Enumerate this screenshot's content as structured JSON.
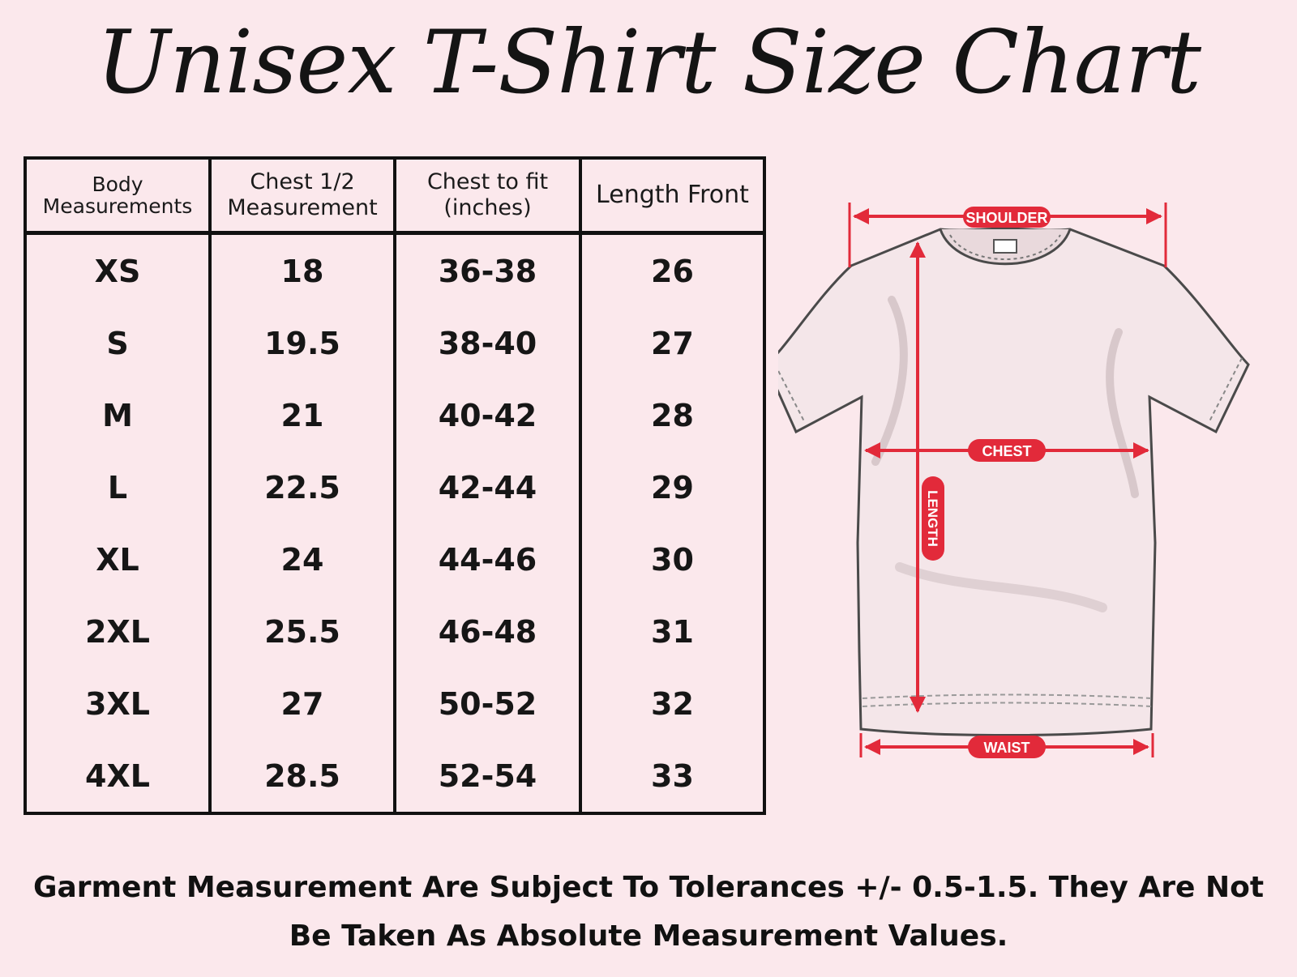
{
  "title": "Unisex T-Shirt Size Chart",
  "table": {
    "headers": [
      [
        "Body",
        "Measurements"
      ],
      [
        "Chest 1/2",
        "Measurement"
      ],
      [
        "Chest to fit",
        "(inches)"
      ],
      [
        "Length Front"
      ]
    ],
    "rows": [
      [
        "XS",
        "18",
        "36-38",
        "26"
      ],
      [
        "S",
        "19.5",
        "38-40",
        "27"
      ],
      [
        "M",
        "21",
        "40-42",
        "28"
      ],
      [
        "L",
        "22.5",
        "42-44",
        "29"
      ],
      [
        "XL",
        "24",
        "44-46",
        "30"
      ],
      [
        "2XL",
        "25.5",
        "46-48",
        "31"
      ],
      [
        "3XL",
        "27",
        "50-52",
        "32"
      ],
      [
        "4XL",
        "28.5",
        "52-54",
        "33"
      ]
    ]
  },
  "diagram": {
    "labels": {
      "shoulder": "SHOULDER",
      "chest": "CHEST",
      "length": "LENGTH",
      "waist": "WAIST"
    },
    "colors": {
      "accent": "#e22a3a",
      "outline": "#4a4a4a",
      "fill": "#f3e4e7"
    }
  },
  "footnote": {
    "line1": "Garment Measurement Are Subject To Tolerances +/- 0.5-1.5. They Are Not",
    "line2": "Be Taken As Absolute Measurement Values."
  }
}
